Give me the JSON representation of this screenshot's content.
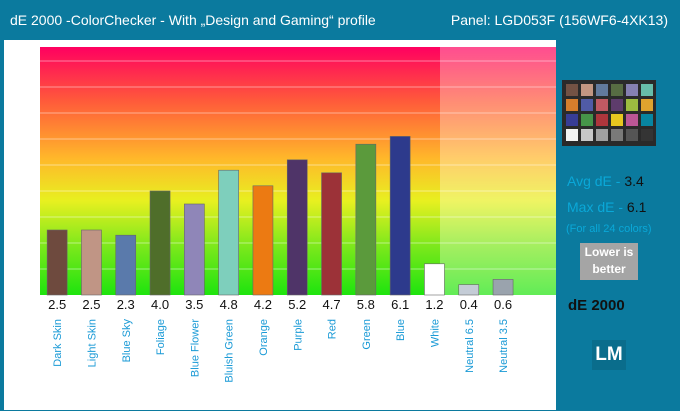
{
  "header": {
    "title": "dE 2000 -ColorChecker - With „Design and Gaming“ profile",
    "panel": "Panel: LGD053F (156WF6-4XK13)"
  },
  "side_panel": {
    "avg_label": "Avg dE - ",
    "avg_value": "3.4",
    "max_label": "Max dE - ",
    "max_value": "6.1",
    "note": "(For all 24 colors)",
    "lower_line1": "Lower is",
    "lower_line2": "better",
    "metric_label": "dE 2000",
    "logo_text": "LM"
  },
  "chart_data": {
    "type": "bar",
    "categories": [
      "Dark Skin",
      "Light Skin",
      "Blue Sky",
      "Foliage",
      "Blue Flower",
      "Bluish Green",
      "Orange",
      "Purple",
      "Red",
      "Green",
      "Blue",
      "White",
      "Neutral 6.5",
      "Neutral 3.5"
    ],
    "values": [
      2.5,
      2.5,
      2.3,
      4.0,
      3.5,
      4.8,
      4.2,
      5.2,
      4.7,
      5.8,
      6.1,
      1.2,
      0.4,
      0.6
    ],
    "value_labels": [
      "2.5",
      "2.5",
      "2.3",
      "4.0",
      "3.5",
      "4.8",
      "4.2",
      "5.2",
      "4.7",
      "5.8",
      "6.1",
      "1.2",
      "0.4",
      "0.6"
    ],
    "colors": [
      "#6e4a3e",
      "#c09585",
      "#5a7aab",
      "#4f6e2a",
      "#8f86b8",
      "#7ecfbc",
      "#ec7a12",
      "#4f3468",
      "#9c3238",
      "#5b9a3c",
      "#2d3a8c",
      "#ffffff",
      "#c4ccd6",
      "#9aa3ad"
    ],
    "y_ticks": [
      "1.0",
      "2.0",
      "3.0",
      "4.0",
      "5.0",
      "6.0",
      "7.0",
      "8.0",
      "9.0"
    ],
    "ylim": [
      0,
      9.5
    ],
    "grid": true
  },
  "checker_colors": [
    "#735244",
    "#c29682",
    "#627a9d",
    "#576c43",
    "#8580b1",
    "#67bdaa",
    "#d67e2c",
    "#505ba6",
    "#c15a63",
    "#5e3c6c",
    "#9dbc40",
    "#e0a32e",
    "#383d96",
    "#469449",
    "#af363c",
    "#e7c71f",
    "#bb5695",
    "#0885a1",
    "#f3f3f2",
    "#c8c8c8",
    "#a0a0a0",
    "#7a7a79",
    "#555555",
    "#343434"
  ]
}
